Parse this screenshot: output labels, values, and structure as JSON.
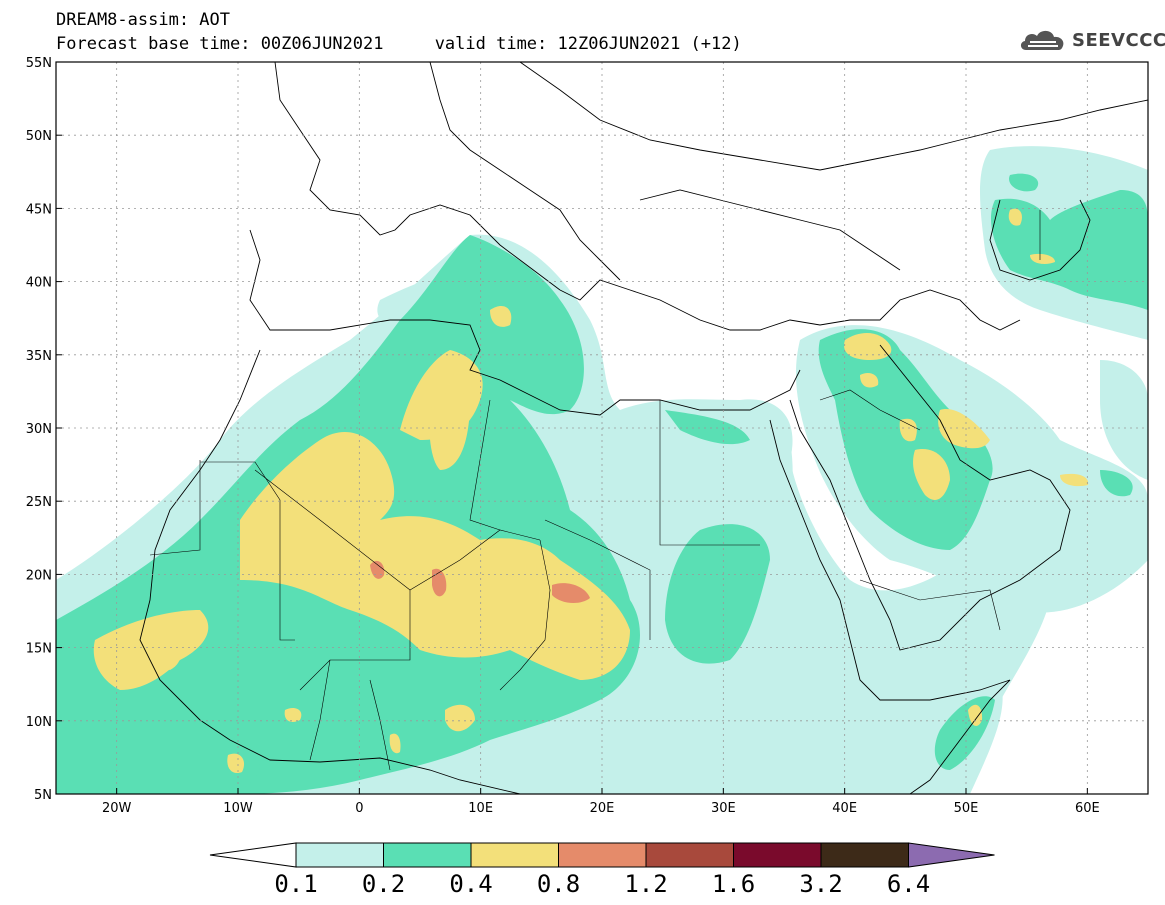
{
  "header": {
    "title_line1": "DREAM8-assim: AOT",
    "title_line2": "Forecast base time: 00Z06JUN2021     valid time: 12Z06JUN2021 (+12)"
  },
  "logo": {
    "text": "SEEVCCC",
    "icon": "cloud-icon"
  },
  "map": {
    "lon_range": [
      -25,
      65
    ],
    "lat_range": [
      5,
      55
    ],
    "lon_ticks": [
      {
        "value": -20,
        "label": "20W"
      },
      {
        "value": -10,
        "label": "10W"
      },
      {
        "value": 0,
        "label": "0"
      },
      {
        "value": 10,
        "label": "10E"
      },
      {
        "value": 20,
        "label": "20E"
      },
      {
        "value": 30,
        "label": "30E"
      },
      {
        "value": 40,
        "label": "40E"
      },
      {
        "value": 50,
        "label": "50E"
      },
      {
        "value": 60,
        "label": "60E"
      }
    ],
    "lat_ticks": [
      {
        "value": 55,
        "label": "55N"
      },
      {
        "value": 50,
        "label": "50N"
      },
      {
        "value": 45,
        "label": "45N"
      },
      {
        "value": 40,
        "label": "40N"
      },
      {
        "value": 35,
        "label": "35N"
      },
      {
        "value": 30,
        "label": "30N"
      },
      {
        "value": 25,
        "label": "25N"
      },
      {
        "value": 20,
        "label": "20N"
      },
      {
        "value": 15,
        "label": "15N"
      },
      {
        "value": 10,
        "label": "10N"
      },
      {
        "value": 5,
        "label": "5N"
      }
    ],
    "grid": true
  },
  "colorbar": {
    "labels": [
      "0.1",
      "0.2",
      "0.4",
      "0.8",
      "1.2",
      "1.6",
      "3.2",
      "6.4"
    ],
    "colors": [
      "#ffffff",
      "#c4f0ea",
      "#5adfb4",
      "#f3e07a",
      "#e58b6a",
      "#a8493c",
      "#7a0a2c",
      "#3d2a18",
      "#8c6bb0"
    ]
  },
  "colors": {
    "level_01": "#c4f0ea",
    "level_02": "#5adfb4",
    "level_04": "#f3e07a",
    "level_08": "#e58b6a"
  }
}
